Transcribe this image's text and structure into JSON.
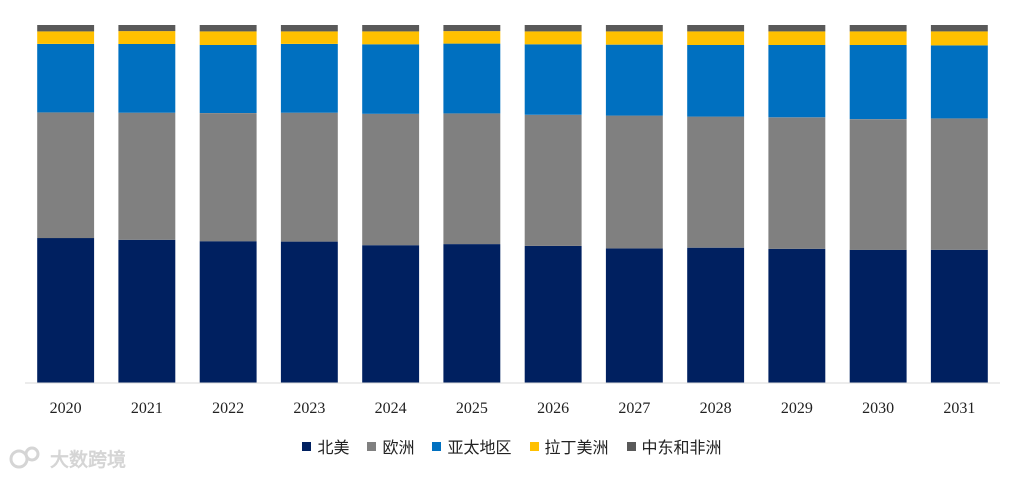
{
  "chart_data": {
    "type": "bar",
    "stacked": true,
    "normalized": true,
    "categories": [
      "2020",
      "2021",
      "2022",
      "2023",
      "2024",
      "2025",
      "2026",
      "2027",
      "2028",
      "2029",
      "2030",
      "2031"
    ],
    "series": [
      {
        "name": "北美",
        "color": "#002060",
        "values": [
          40.5,
          40.0,
          39.6,
          39.5,
          38.5,
          38.8,
          38.3,
          37.6,
          37.8,
          37.5,
          37.2,
          37.2
        ]
      },
      {
        "name": "欧洲",
        "color": "#808080",
        "values": [
          35.1,
          35.5,
          35.8,
          36.0,
          36.7,
          36.5,
          36.6,
          37.1,
          36.6,
          36.7,
          36.5,
          36.7
        ]
      },
      {
        "name": "亚太地区",
        "color": "#0070C0",
        "values": [
          19.1,
          19.2,
          19.0,
          19.2,
          19.4,
          19.5,
          19.7,
          19.8,
          20.0,
          20.2,
          20.7,
          20.4
        ]
      },
      {
        "name": "拉丁美洲",
        "color": "#FFC000",
        "values": [
          3.5,
          3.6,
          3.8,
          3.5,
          3.6,
          3.5,
          3.6,
          3.7,
          3.8,
          3.8,
          3.8,
          3.9
        ]
      },
      {
        "name": "中东和非洲",
        "color": "#595959",
        "values": [
          1.8,
          1.7,
          1.8,
          1.8,
          1.8,
          1.7,
          1.8,
          1.8,
          1.8,
          1.8,
          1.8,
          1.8
        ]
      }
    ],
    "ylim": [
      0,
      100
    ],
    "legend_position": "bottom",
    "grid": false
  },
  "watermark": {
    "text": "大数跨境",
    "icon": "logo-icon"
  }
}
